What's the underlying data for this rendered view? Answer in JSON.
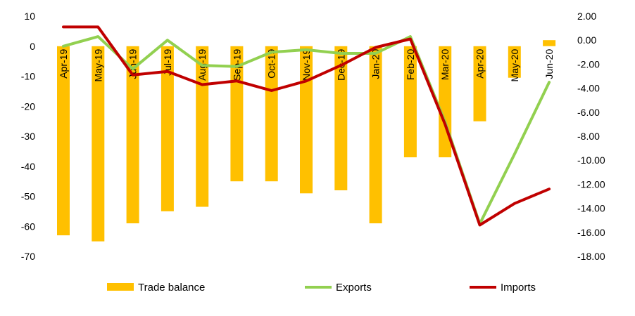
{
  "chart_data": {
    "type": "bar+line",
    "categories": [
      "Apr-19",
      "May-19",
      "Jun-19",
      "Jul-19",
      "Aug-19",
      "Sep-19",
      "Oct-19",
      "Nov-19",
      "Dec-19",
      "Jan-20",
      "Feb-20",
      "Mar-20",
      "Apr-20",
      "May-20",
      "Jun-20"
    ],
    "left_axis": {
      "min": -70,
      "max": 10,
      "ticks": [
        10,
        0,
        -10,
        -20,
        -30,
        -40,
        -50,
        -60,
        -70
      ],
      "tick_labels": [
        "10",
        "0",
        "-10",
        "-20",
        "-30",
        "-40",
        "-50",
        "-60",
        "-70"
      ]
    },
    "right_axis": {
      "min": -18,
      "max": 2,
      "ticks": [
        2,
        0,
        -2,
        -4,
        -6,
        -8,
        -10,
        -12,
        -14,
        -16,
        -18
      ],
      "tick_labels": [
        "2.00",
        "0.00",
        "-2.00",
        "-4.00",
        "-6.00",
        "-8.00",
        "-10.00",
        "-12.00",
        "-14.00",
        "-16.00",
        "-18.00"
      ]
    },
    "series": [
      {
        "name": "Trade balance",
        "type": "bar",
        "axis": "left",
        "color": "#FFC000",
        "values": [
          -63,
          -65,
          -59,
          -55,
          -53.5,
          -45,
          -45,
          -49,
          -48,
          -59,
          -37,
          -37,
          -25,
          -10.5,
          2
        ]
      },
      {
        "name": "Exports",
        "type": "line",
        "axis": "right",
        "color": "#92D050",
        "values": [
          -0.5,
          0.3,
          -2.4,
          0.0,
          -2.1,
          -2.2,
          -1.0,
          -0.8,
          -1.1,
          -1.1,
          0.3,
          -6.8,
          -15.3,
          -9.5,
          -3.5
        ]
      },
      {
        "name": "Imports",
        "type": "line",
        "axis": "right",
        "color": "#C00000",
        "values": [
          1.1,
          1.1,
          -2.9,
          -2.6,
          -3.7,
          -3.4,
          -4.2,
          -3.4,
          -2.1,
          -0.6,
          0.1,
          -7.0,
          -15.4,
          -13.6,
          -12.4
        ]
      }
    ],
    "legend": {
      "position": "bottom"
    },
    "grid": false
  }
}
